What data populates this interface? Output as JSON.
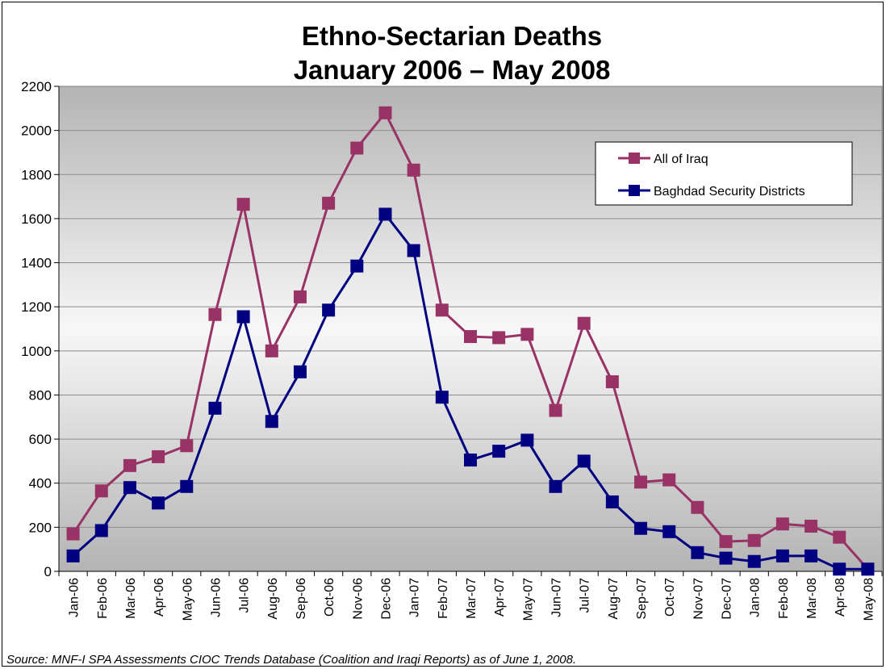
{
  "chart_data": {
    "type": "line",
    "title": "Ethno-Sectarian Deaths",
    "subtitle": "January 2006 – May 2008",
    "xlabel": "",
    "ylabel": "",
    "ylim": [
      0,
      2200
    ],
    "y_ticks": [
      0,
      200,
      400,
      600,
      800,
      1000,
      1200,
      1400,
      1600,
      1800,
      2000,
      2200
    ],
    "grid": true,
    "legend_position": "top-right",
    "categories": [
      "Jan-06",
      "Feb-06",
      "Mar-06",
      "Apr-06",
      "May-06",
      "Jun-06",
      "Jul-06",
      "Aug-06",
      "Sep-06",
      "Oct-06",
      "Nov-06",
      "Dec-06",
      "Jan-07",
      "Feb-07",
      "Mar-07",
      "Apr-07",
      "May-07",
      "Jun-07",
      "Jul-07",
      "Aug-07",
      "Sep-07",
      "Oct-07",
      "Nov-07",
      "Dec-07",
      "Jan-08",
      "Feb-08",
      "Mar-08",
      "Apr-08",
      "May-08"
    ],
    "series": [
      {
        "name": "All of Iraq",
        "color": "#993366",
        "values": [
          170,
          365,
          480,
          520,
          570,
          1165,
          1665,
          1000,
          1245,
          1670,
          1920,
          2080,
          1820,
          1185,
          1065,
          1060,
          1075,
          730,
          1125,
          860,
          405,
          415,
          290,
          135,
          140,
          215,
          205,
          155,
          10
        ]
      },
      {
        "name": "Baghdad Security Districts",
        "color": "#000080",
        "values": [
          70,
          185,
          380,
          310,
          385,
          740,
          1155,
          680,
          905,
          1185,
          1385,
          1620,
          1455,
          790,
          505,
          545,
          595,
          385,
          500,
          315,
          195,
          180,
          85,
          60,
          45,
          70,
          70,
          10,
          10
        ]
      }
    ],
    "source_note": "Source:  MNF-I SPA Assessments CIOC Trends Database (Coalition and Iraqi Reports)  as of June 1, 2008."
  }
}
